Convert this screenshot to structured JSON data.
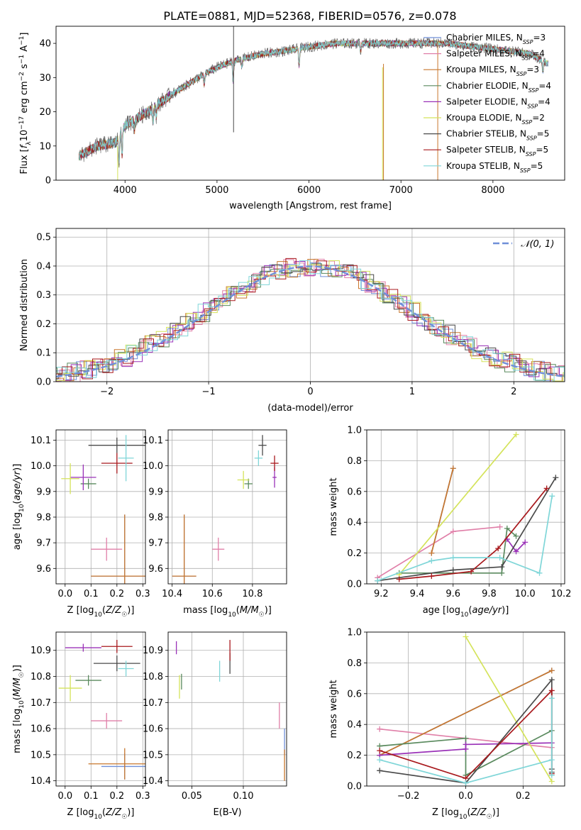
{
  "figure_title": "PLATE=0881, MJD=52368, FIBERID=0576, z=0.078",
  "colors": {
    "Chabrier MILES": "#6f8fd8",
    "Salpeter MILES": "#e07fa8",
    "Kroupa MILES": "#c8772d",
    "Chabrier ELODIE": "#5a8a5e",
    "Salpeter ELODIE": "#9a32b8",
    "Kroupa ELODIE": "#d4e35a",
    "Chabrier STELIB": "#4a4a4a",
    "Salpeter STELIB": "#a8181c",
    "Kroupa STELIB": "#7fd6d8",
    "normal_curve": "#6f8fd8"
  },
  "chart_data": [
    {
      "id": "spectrum",
      "type": "line",
      "xlabel": "wavelength [Angstrom, rest frame]",
      "ylabel": "Flux [f_λ 10^-17 erg cm^-2 s^-1 A^-1]",
      "xlim": [
        3250,
        8780
      ],
      "ylim": [
        0,
        45
      ],
      "xticks": [
        4000,
        5000,
        6000,
        7000,
        8000
      ],
      "yticks": [
        0,
        10,
        20,
        30,
        40
      ],
      "grid": false,
      "legend_position": "top-right",
      "legend": [
        {
          "model": "Chabrier MILES",
          "n": 3
        },
        {
          "model": "Salpeter MILES",
          "n": 4
        },
        {
          "model": "Kroupa MILES",
          "n": 3
        },
        {
          "model": "Chabrier ELODIE",
          "n": 4
        },
        {
          "model": "Salpeter ELODIE",
          "n": 4
        },
        {
          "model": "Kroupa ELODIE",
          "n": 2
        },
        {
          "model": "Chabrier STELIB",
          "n": 5
        },
        {
          "model": "Salpeter STELIB",
          "n": 5
        },
        {
          "model": "Kroupa STELIB",
          "n": 5
        }
      ],
      "continuum_x": [
        3500,
        3700,
        3900,
        4000,
        4300,
        4500,
        4800,
        5000,
        5200,
        5500,
        5800,
        6000,
        6300,
        6600,
        6900,
        7200,
        7500,
        7800,
        8100,
        8400,
        8600
      ],
      "continuum_y": [
        7,
        10,
        11,
        16,
        21,
        25,
        30,
        33,
        35,
        37,
        38,
        39,
        40,
        40,
        40,
        40,
        40,
        39,
        38,
        37,
        34
      ],
      "absorption_features": [
        {
          "x": 3934,
          "depth": 8
        },
        {
          "x": 3968,
          "depth": 7
        },
        {
          "x": 4102,
          "depth": 3
        },
        {
          "x": 4305,
          "depth": 4
        },
        {
          "x": 4340,
          "depth": 3
        },
        {
          "x": 4861,
          "depth": 3
        },
        {
          "x": 5175,
          "depth": 6
        },
        {
          "x": 5270,
          "depth": 2
        },
        {
          "x": 5893,
          "depth": 5
        },
        {
          "x": 6563,
          "depth": 2
        },
        {
          "x": 8542,
          "depth": 3
        },
        {
          "x": 8662,
          "depth": 3
        }
      ],
      "spikes": [
        {
          "x": 5180,
          "y_from": 33,
          "y_to": 45,
          "color_key": "Chabrier STELIB"
        },
        {
          "x": 5180,
          "y_from": 33,
          "y_to": 14,
          "color_key": "Chabrier STELIB"
        },
        {
          "x": 6800,
          "y_from": 33,
          "y_to": 0,
          "color_key": "Kroupa ELODIE"
        },
        {
          "x": 6810,
          "y_from": 34,
          "y_to": 0,
          "color_key": "Kroupa MILES"
        },
        {
          "x": 7400,
          "y_from": 40,
          "y_to": 0,
          "color_key": "Kroupa MILES"
        },
        {
          "x": 3920,
          "y_from": 10,
          "y_to": 0,
          "color_key": "Kroupa ELODIE"
        }
      ]
    },
    {
      "id": "residuals",
      "type": "histogram",
      "xlabel": "(data-model)/error",
      "ylabel": "Normed distribution",
      "xlim": [
        -2.5,
        2.5
      ],
      "ylim": [
        0,
        0.53
      ],
      "xticks": [
        -2,
        -1,
        0,
        1,
        2
      ],
      "yticks": [
        0.0,
        0.1,
        0.2,
        0.3,
        0.4,
        0.5
      ],
      "grid": true,
      "legend_position": "top-right",
      "legend": [
        {
          "label": "𝒩(0, 1)",
          "style": "dashed"
        }
      ],
      "bin_width": 0.1
    },
    {
      "id": "Z_vs_age",
      "type": "scatter",
      "xlabel": "Z [log₁₀(Z/Z☉)]",
      "ylabel": "age  [log₁₀(age/yr)]",
      "xlim": [
        -0.035,
        0.31
      ],
      "ylim": [
        9.54,
        10.14
      ],
      "xticks": [
        0.0,
        0.1,
        0.2,
        0.3
      ],
      "yticks": [
        9.6,
        9.7,
        9.8,
        9.9,
        10.0,
        10.1
      ],
      "grid": true,
      "points": [
        {
          "model": "Chabrier MILES",
          "x": 0.23,
          "y": 9.57,
          "xerr": 0.13,
          "yerr": 0.24
        },
        {
          "model": "Salpeter MILES",
          "x": 0.16,
          "y": 9.675,
          "xerr": 0.06,
          "yerr": 0.045
        },
        {
          "model": "Kroupa MILES",
          "x": 0.23,
          "y": 9.57,
          "xerr": 0.13,
          "yerr": 0.24
        },
        {
          "model": "Chabrier ELODIE",
          "x": 0.09,
          "y": 9.93,
          "xerr": 0.03,
          "yerr": 0.02
        },
        {
          "model": "Salpeter ELODIE",
          "x": 0.07,
          "y": 9.955,
          "xerr": 0.05,
          "yerr": 0.05
        },
        {
          "model": "Kroupa ELODIE",
          "x": 0.02,
          "y": 9.95,
          "xerr": 0.035,
          "yerr": 0.06
        },
        {
          "model": "Chabrier STELIB",
          "x": 0.2,
          "y": 10.08,
          "xerr": 0.11,
          "yerr": 0.03
        },
        {
          "model": "Salpeter STELIB",
          "x": 0.2,
          "y": 10.01,
          "xerr": 0.06,
          "yerr": 0.04
        },
        {
          "model": "Kroupa STELIB",
          "x": 0.235,
          "y": 10.03,
          "xerr": 0.03,
          "yerr": 0.09
        }
      ]
    },
    {
      "id": "mass_vs_age",
      "type": "scatter",
      "xlabel": "mass [log₁₀(M/M☉)]",
      "ylabel": "",
      "xlim": [
        10.38,
        10.97
      ],
      "ylim": [
        9.54,
        10.14
      ],
      "xticks": [
        10.4,
        10.6,
        10.8
      ],
      "yticks": [
        9.6,
        9.7,
        9.8,
        9.9,
        10.0,
        10.1
      ],
      "grid": true,
      "points": [
        {
          "model": "Chabrier MILES",
          "x": 10.46,
          "y": 9.57,
          "xerr": 0.06,
          "yerr": 0.24
        },
        {
          "model": "Salpeter MILES",
          "x": 10.63,
          "y": 9.675,
          "xerr": 0.03,
          "yerr": 0.045
        },
        {
          "model": "Kroupa MILES",
          "x": 10.46,
          "y": 9.57,
          "xerr": 0.06,
          "yerr": 0.24
        },
        {
          "model": "Chabrier ELODIE",
          "x": 10.78,
          "y": 9.93,
          "xerr": 0.02,
          "yerr": 0.02
        },
        {
          "model": "Salpeter ELODIE",
          "x": 10.91,
          "y": 9.955,
          "xerr": 0.01,
          "yerr": 0.04
        },
        {
          "model": "Kroupa ELODIE",
          "x": 10.755,
          "y": 9.945,
          "xerr": 0.03,
          "yerr": 0.035
        },
        {
          "model": "Chabrier STELIB",
          "x": 10.85,
          "y": 10.08,
          "xerr": 0.02,
          "yerr": 0.04
        },
        {
          "model": "Salpeter STELIB",
          "x": 10.91,
          "y": 10.01,
          "xerr": 0.02,
          "yerr": 0.03
        },
        {
          "model": "Kroupa STELIB",
          "x": 10.83,
          "y": 10.03,
          "xerr": 0.02,
          "yerr": 0.03
        }
      ]
    },
    {
      "id": "age_vs_weight",
      "type": "line",
      "xlabel": "age  [log₁₀(age/yr)]",
      "ylabel": "mass weight",
      "xlim": [
        9.12,
        10.22
      ],
      "ylim": [
        0,
        1.0
      ],
      "xticks": [
        9.2,
        9.4,
        9.6,
        9.8,
        10.0,
        10.2
      ],
      "yticks": [
        0.0,
        0.2,
        0.4,
        0.6,
        0.8,
        1.0
      ],
      "grid": true,
      "series": [
        {
          "model": "Chabrier MILES",
          "x": [
            9.48,
            9.6
          ],
          "y": [
            0.2,
            0.75
          ]
        },
        {
          "model": "Salpeter MILES",
          "x": [
            9.18,
            9.6,
            9.86
          ],
          "y": [
            0.04,
            0.34,
            0.37
          ]
        },
        {
          "model": "Kroupa MILES",
          "x": [
            9.48,
            9.6
          ],
          "y": [
            0.2,
            0.75
          ]
        },
        {
          "model": "Chabrier ELODIE",
          "x": [
            9.3,
            9.87,
            9.9,
            9.95
          ],
          "y": [
            0.07,
            0.07,
            0.36,
            0.31
          ]
        },
        {
          "model": "Salpeter ELODIE",
          "x": [
            9.9,
            9.95,
            10.0
          ],
          "y": [
            0.29,
            0.21,
            0.27
          ]
        },
        {
          "model": "Kroupa ELODIE",
          "x": [
            9.3,
            9.95
          ],
          "y": [
            0.06,
            0.97
          ]
        },
        {
          "model": "Chabrier STELIB",
          "x": [
            9.18,
            9.6,
            9.87,
            10.17
          ],
          "y": [
            0.02,
            0.09,
            0.11,
            0.69
          ]
        },
        {
          "model": "Salpeter STELIB",
          "x": [
            9.3,
            9.48,
            9.7,
            9.85,
            10.12
          ],
          "y": [
            0.03,
            0.05,
            0.08,
            0.23,
            0.62
          ]
        },
        {
          "model": "Kroupa STELIB",
          "x": [
            9.18,
            9.48,
            9.6,
            9.86,
            10.08,
            10.15
          ],
          "y": [
            0.02,
            0.15,
            0.17,
            0.17,
            0.07,
            0.57
          ]
        }
      ]
    },
    {
      "id": "Z_vs_mass",
      "type": "scatter",
      "xlabel": "Z [log₁₀(Z/Z☉)]",
      "ylabel": "mass [log₁₀(M/M☉)]",
      "xlim": [
        -0.035,
        0.31
      ],
      "ylim": [
        10.38,
        10.97
      ],
      "xticks": [
        0.0,
        0.1,
        0.2,
        0.3
      ],
      "yticks": [
        10.4,
        10.5,
        10.6,
        10.7,
        10.8,
        10.9
      ],
      "grid": true,
      "points": [
        {
          "model": "Chabrier MILES",
          "x": 0.23,
          "y": 10.455,
          "xerr": 0.09,
          "yerr": 0.05
        },
        {
          "model": "Salpeter MILES",
          "x": 0.16,
          "y": 10.63,
          "xerr": 0.06,
          "yerr": 0.03
        },
        {
          "model": "Kroupa MILES",
          "x": 0.23,
          "y": 10.465,
          "xerr": 0.14,
          "yerr": 0.06
        },
        {
          "model": "Chabrier ELODIE",
          "x": 0.09,
          "y": 10.785,
          "xerr": 0.05,
          "yerr": 0.02
        },
        {
          "model": "Salpeter ELODIE",
          "x": 0.07,
          "y": 10.91,
          "xerr": 0.07,
          "yerr": 0.015
        },
        {
          "model": "Kroupa ELODIE",
          "x": 0.02,
          "y": 10.755,
          "xerr": 0.045,
          "yerr": 0.05
        },
        {
          "model": "Chabrier STELIB",
          "x": 0.2,
          "y": 10.85,
          "xerr": 0.09,
          "yerr": 0.03
        },
        {
          "model": "Salpeter STELIB",
          "x": 0.2,
          "y": 10.915,
          "xerr": 0.06,
          "yerr": 0.025
        },
        {
          "model": "Kroupa STELIB",
          "x": 0.235,
          "y": 10.83,
          "xerr": 0.03,
          "yerr": 0.03
        }
      ]
    },
    {
      "id": "EBV_vs_mass",
      "type": "scatter",
      "xlabel": "E(B-V)",
      "ylabel": "",
      "xlim": [
        0.027,
        0.142
      ],
      "ylim": [
        10.38,
        10.97
      ],
      "xticks": [
        0.05,
        0.1
      ],
      "yticks": [
        10.4,
        10.5,
        10.6,
        10.7,
        10.8,
        10.9
      ],
      "grid": true,
      "points": [
        {
          "model": "Chabrier MILES",
          "x": 0.14,
          "y": 10.55,
          "xerr": 0,
          "yerr": 0.05
        },
        {
          "model": "Salpeter MILES",
          "x": 0.135,
          "y": 10.65,
          "xerr": 0,
          "yerr": 0.05
        },
        {
          "model": "Kroupa MILES",
          "x": 0.14,
          "y": 10.46,
          "xerr": 0,
          "yerr": 0.06
        },
        {
          "model": "Chabrier ELODIE",
          "x": 0.04,
          "y": 10.78,
          "xerr": 0,
          "yerr": 0.03
        },
        {
          "model": "Salpeter ELODIE",
          "x": 0.035,
          "y": 10.91,
          "xerr": 0,
          "yerr": 0.025
        },
        {
          "model": "Kroupa ELODIE",
          "x": 0.038,
          "y": 10.76,
          "xerr": 0,
          "yerr": 0.045
        },
        {
          "model": "Chabrier STELIB",
          "x": 0.087,
          "y": 10.85,
          "xerr": 0,
          "yerr": 0.04
        },
        {
          "model": "Salpeter STELIB",
          "x": 0.087,
          "y": 10.9,
          "xerr": 0,
          "yerr": 0.04
        },
        {
          "model": "Kroupa STELIB",
          "x": 0.077,
          "y": 10.82,
          "xerr": 0,
          "yerr": 0.04
        }
      ]
    },
    {
      "id": "Z_vs_weight",
      "type": "line",
      "xlabel": "Z [log₁₀(Z/Z☉)]",
      "ylabel": "mass weight",
      "xlim": [
        -0.345,
        0.345
      ],
      "ylim": [
        0,
        1.0
      ],
      "xticks": [
        -0.2,
        0.0,
        0.2
      ],
      "yticks": [
        0.0,
        0.2,
        0.4,
        0.6,
        0.8,
        1.0
      ],
      "grid": true,
      "series": [
        {
          "model": "Chabrier MILES",
          "x": [
            -0.3,
            0.3
          ],
          "y": [
            0.2,
            0.75
          ]
        },
        {
          "model": "Salpeter MILES",
          "x": [
            -0.3,
            0.3
          ],
          "y": [
            0.37,
            0.25
          ]
        },
        {
          "model": "Kroupa MILES",
          "x": [
            -0.3,
            0.3
          ],
          "y": [
            0.2,
            0.75
          ]
        },
        {
          "model": "Chabrier ELODIE",
          "x": [
            -0.3,
            0.0,
            0.0,
            0.3
          ],
          "y": [
            0.26,
            0.31,
            0.07,
            0.36
          ]
        },
        {
          "model": "Salpeter ELODIE",
          "x": [
            -0.3,
            0.0,
            0.0,
            0.3
          ],
          "y": [
            0.2,
            0.24,
            0.27,
            0.28
          ]
        },
        {
          "model": "Kroupa ELODIE",
          "x": [
            0.0,
            0.3
          ],
          "y": [
            0.97,
            0.03
          ]
        },
        {
          "model": "Chabrier STELIB",
          "x": [
            -0.3,
            0.0,
            0.3,
            0.3,
            0.3
          ],
          "y": [
            0.1,
            0.02,
            0.69,
            0.09,
            0.11
          ]
        },
        {
          "model": "Salpeter STELIB",
          "x": [
            -0.3,
            0.0,
            0.3,
            0.3
          ],
          "y": [
            0.23,
            0.05,
            0.62,
            0.08
          ]
        },
        {
          "model": "Kroupa STELIB",
          "x": [
            -0.3,
            0.0,
            0.3,
            0.3,
            0.3
          ],
          "y": [
            0.17,
            0.02,
            0.17,
            0.57,
            0.07
          ]
        }
      ]
    }
  ]
}
